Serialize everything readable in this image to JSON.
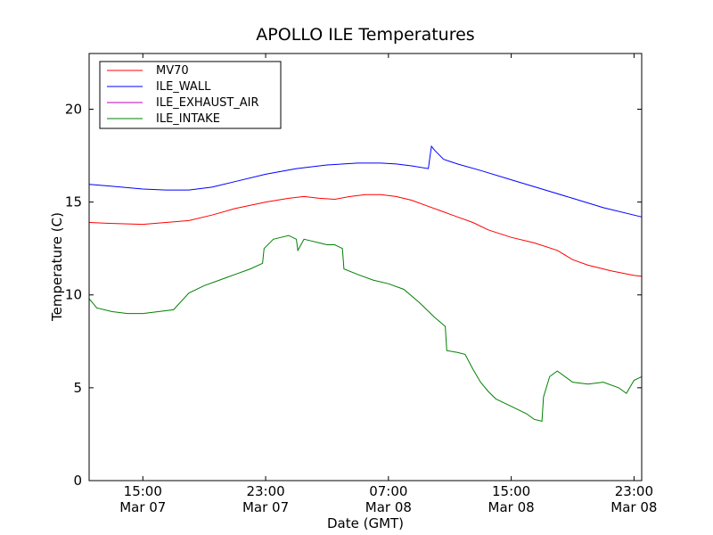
{
  "chart_data": {
    "type": "line",
    "title": "APOLLO ILE Temperatures",
    "xlabel": "Date (GMT)",
    "ylabel": "Temperature (C)",
    "x_unit": "hours",
    "xlim": [
      11.5,
      47.5
    ],
    "ylim": [
      0,
      23
    ],
    "yticks": [
      0,
      5,
      10,
      15,
      20
    ],
    "xticks": [
      {
        "value": 15,
        "time": "15:00",
        "date": "Mar 07"
      },
      {
        "value": 23,
        "time": "23:00",
        "date": "Mar 07"
      },
      {
        "value": 31,
        "time": "07:00",
        "date": "Mar 08"
      },
      {
        "value": 39,
        "time": "15:00",
        "date": "Mar 08"
      },
      {
        "value": 47,
        "time": "23:00",
        "date": "Mar 08"
      }
    ],
    "grid": false,
    "legend_position": "top-left",
    "series": [
      {
        "name": "MV70",
        "color": "#ff0000",
        "x": [
          11.5,
          13,
          15,
          16.5,
          18,
          19.5,
          21,
          23,
          24.5,
          25.5,
          26.5,
          27.5,
          28.5,
          29.5,
          30.5,
          31.5,
          32.5,
          33.5,
          34.5,
          35.5,
          36.5,
          37.5,
          39,
          40.5,
          42,
          43,
          44,
          45.5,
          47,
          47.5
        ],
        "y": [
          13.9,
          13.85,
          13.8,
          13.9,
          14.0,
          14.3,
          14.65,
          15.0,
          15.2,
          15.3,
          15.2,
          15.15,
          15.3,
          15.4,
          15.4,
          15.3,
          15.1,
          14.8,
          14.5,
          14.2,
          13.9,
          13.5,
          13.1,
          12.8,
          12.4,
          11.9,
          11.6,
          11.3,
          11.05,
          11.0
        ]
      },
      {
        "name": "ILE_WALL",
        "color": "#0000ff",
        "x": [
          11.5,
          13,
          15,
          16.5,
          18,
          19.5,
          21,
          23,
          25,
          27,
          29,
          30.5,
          31.5,
          32.5,
          33.6,
          33.8,
          34.0,
          34.6,
          35.5,
          37,
          39,
          41,
          43,
          45,
          47.5
        ],
        "y": [
          15.95,
          15.85,
          15.7,
          15.65,
          15.65,
          15.8,
          16.1,
          16.5,
          16.8,
          17.0,
          17.1,
          17.1,
          17.05,
          16.95,
          16.8,
          18.0,
          17.8,
          17.3,
          17.05,
          16.7,
          16.2,
          15.7,
          15.2,
          14.7,
          14.2
        ]
      },
      {
        "name": "ILE_EXHAUST_AIR",
        "color": "#bf00bf",
        "x": [],
        "y": []
      },
      {
        "name": "ILE_INTAKE",
        "color": "#008000",
        "x": [
          11.5,
          12,
          13,
          14,
          15,
          16,
          17,
          18,
          19,
          20,
          21,
          22,
          22.8,
          22.9,
          23.5,
          24,
          24.5,
          25.0,
          25.1,
          25.5,
          26,
          26.5,
          27,
          27.5,
          28,
          28.1,
          29,
          30,
          31,
          32,
          33,
          34,
          34.7,
          34.8,
          35.5,
          36,
          36.5,
          37,
          37.5,
          38,
          39,
          40,
          40.5,
          41,
          41.1,
          41.5,
          42,
          43,
          44,
          45,
          46,
          46.5,
          47,
          47.5
        ],
        "y": [
          9.8,
          9.3,
          9.1,
          9.0,
          9.0,
          9.1,
          9.2,
          10.1,
          10.5,
          10.8,
          11.1,
          11.4,
          11.7,
          12.5,
          13.0,
          13.1,
          13.2,
          13.0,
          12.4,
          13.0,
          12.9,
          12.8,
          12.7,
          12.7,
          12.5,
          11.4,
          11.1,
          10.8,
          10.6,
          10.3,
          9.6,
          8.8,
          8.3,
          7.0,
          6.9,
          6.8,
          6.0,
          5.3,
          4.8,
          4.4,
          4.0,
          3.6,
          3.3,
          3.2,
          4.5,
          5.6,
          5.9,
          5.3,
          5.2,
          5.3,
          5.0,
          4.7,
          5.4,
          5.6
        ]
      }
    ]
  }
}
